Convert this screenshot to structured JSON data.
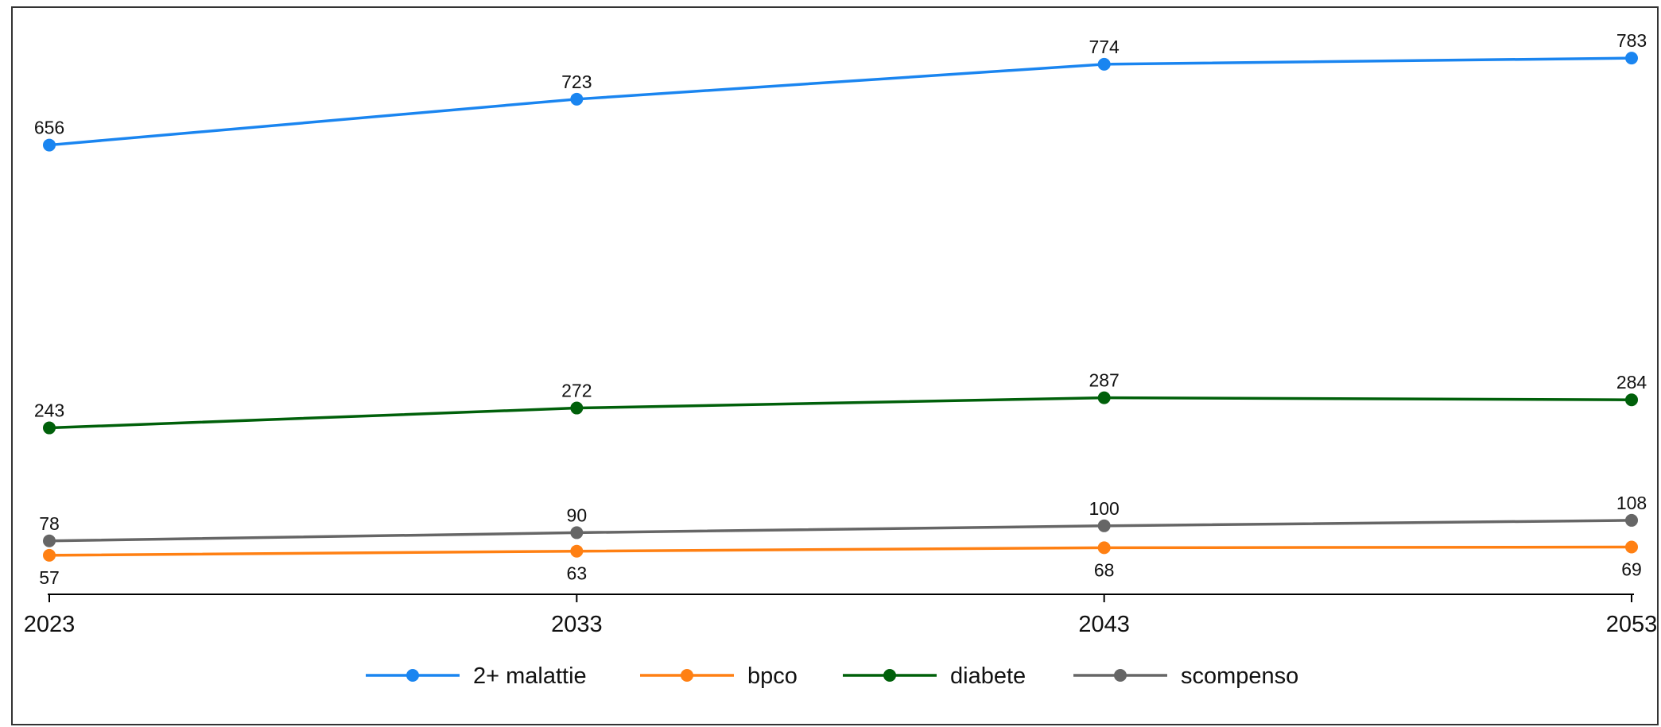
{
  "chart_data": {
    "type": "line",
    "title": "",
    "xlabel": "",
    "ylabel": "",
    "x": [
      "2023",
      "2033",
      "2043",
      "2053"
    ],
    "ylim": [
      0,
      833
    ],
    "grid": false,
    "legend_position": "bottom",
    "series": [
      {
        "name": "2+ malattie",
        "color": "#1a85f0",
        "values": [
          656,
          723,
          774,
          783
        ],
        "label_position": "above"
      },
      {
        "name": "bpco",
        "color": "#ff8013",
        "values": [
          57,
          63,
          68,
          69
        ],
        "label_position": "below"
      },
      {
        "name": "diabete",
        "color": "#00600a",
        "values": [
          243,
          272,
          287,
          284
        ],
        "label_position": "above"
      },
      {
        "name": "scompenso",
        "color": "#666666",
        "values": [
          78,
          90,
          100,
          108
        ],
        "label_position": "above"
      }
    ]
  }
}
